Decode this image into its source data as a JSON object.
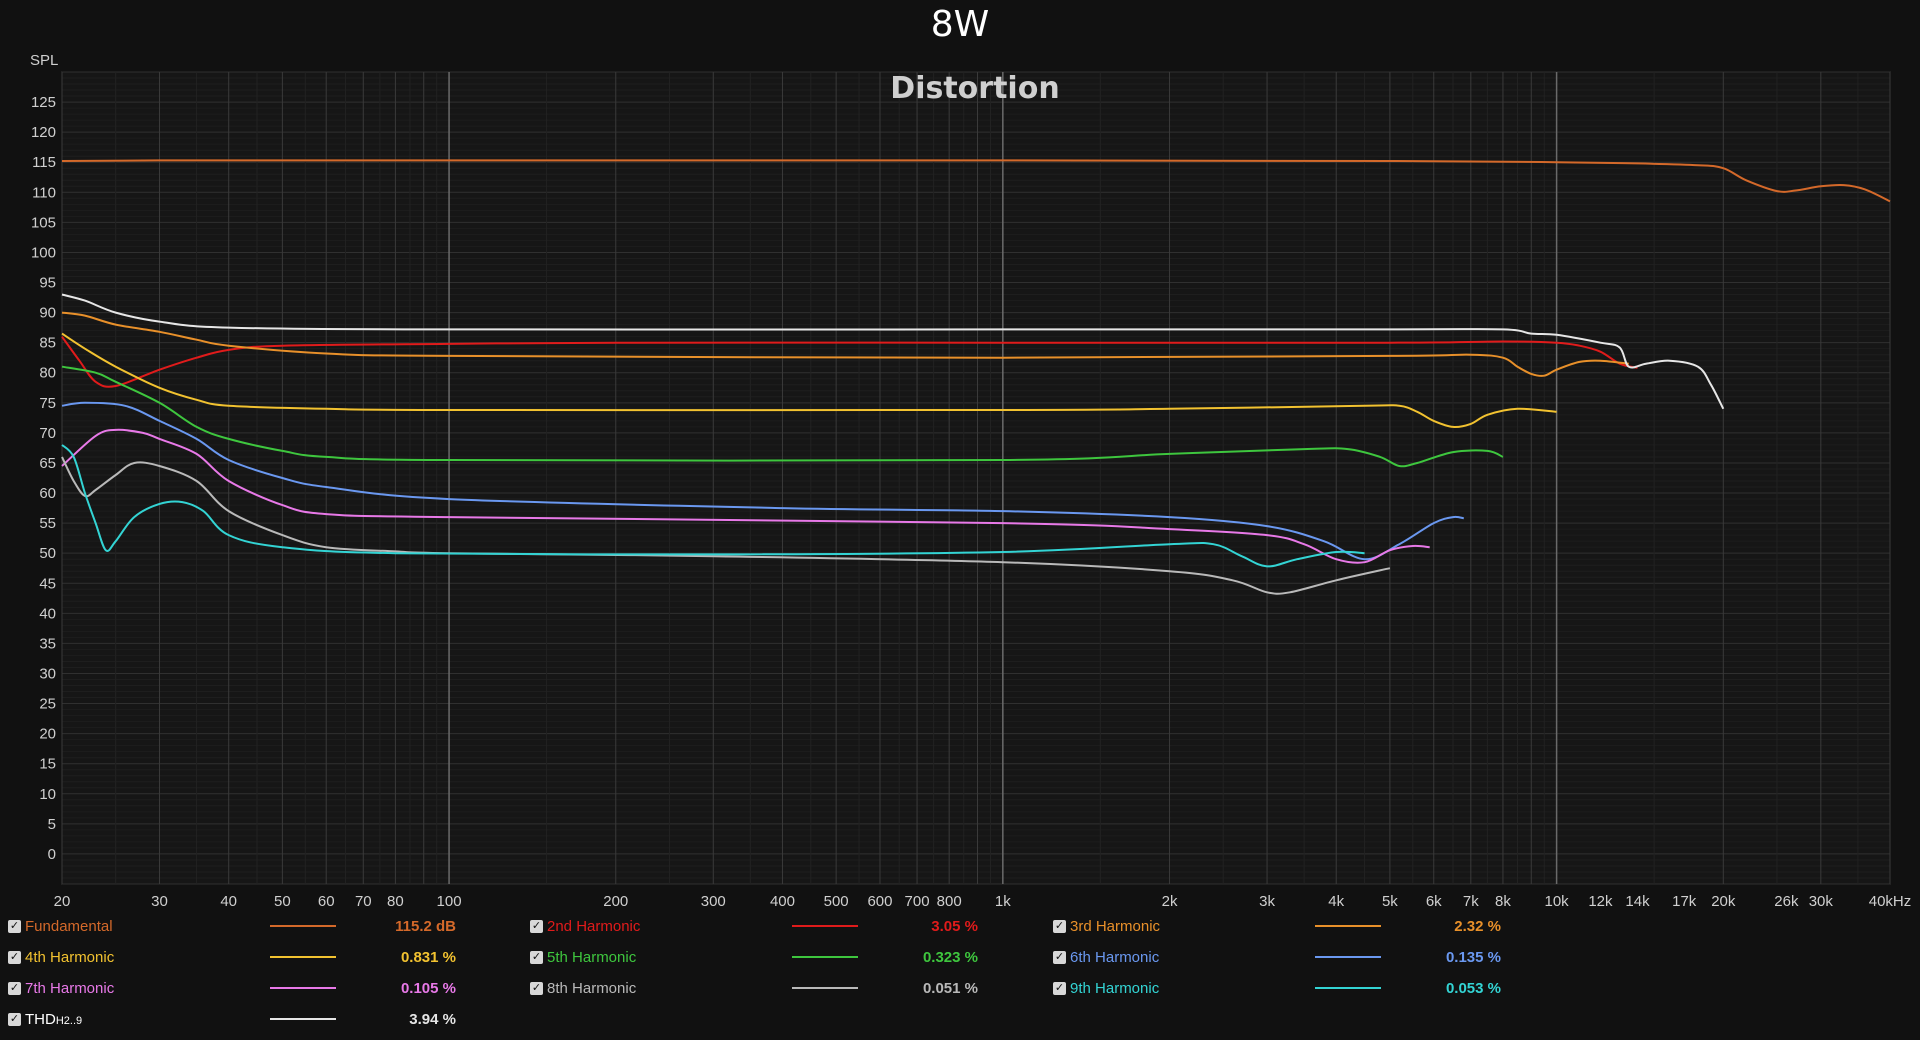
{
  "page": {
    "title": "8W"
  },
  "chart_data": {
    "type": "line",
    "title": "Distortion",
    "ylabel": "SPL",
    "xlabel": "",
    "x_scale": "log",
    "xlim": [
      20,
      40000
    ],
    "ylim": [
      -5,
      130
    ],
    "grid": true,
    "yticks": [
      0,
      5,
      10,
      15,
      20,
      25,
      30,
      35,
      40,
      45,
      50,
      55,
      60,
      65,
      70,
      75,
      80,
      85,
      90,
      95,
      100,
      105,
      110,
      115,
      120,
      125
    ],
    "xticks": [
      {
        "v": 20,
        "label": "20"
      },
      {
        "v": 30,
        "label": "30"
      },
      {
        "v": 40,
        "label": "40"
      },
      {
        "v": 50,
        "label": "50"
      },
      {
        "v": 60,
        "label": "60"
      },
      {
        "v": 70,
        "label": "70"
      },
      {
        "v": 80,
        "label": "80"
      },
      {
        "v": 100,
        "label": "100"
      },
      {
        "v": 200,
        "label": "200"
      },
      {
        "v": 300,
        "label": "300"
      },
      {
        "v": 400,
        "label": "400"
      },
      {
        "v": 500,
        "label": "500"
      },
      {
        "v": 600,
        "label": "600"
      },
      {
        "v": 700,
        "label": "700"
      },
      {
        "v": 800,
        "label": "800"
      },
      {
        "v": 1000,
        "label": "1k"
      },
      {
        "v": 2000,
        "label": "2k"
      },
      {
        "v": 3000,
        "label": "3k"
      },
      {
        "v": 4000,
        "label": "4k"
      },
      {
        "v": 5000,
        "label": "5k"
      },
      {
        "v": 6000,
        "label": "6k"
      },
      {
        "v": 7000,
        "label": "7k"
      },
      {
        "v": 8000,
        "label": "8k"
      },
      {
        "v": 10000,
        "label": "10k"
      },
      {
        "v": 12000,
        "label": "12k"
      },
      {
        "v": 14000,
        "label": "14k"
      },
      {
        "v": 17000,
        "label": "17k"
      },
      {
        "v": 20000,
        "label": "20k"
      },
      {
        "v": 26000,
        "label": "26k"
      },
      {
        "v": 30000,
        "label": "30k"
      },
      {
        "v": 40000,
        "label": "40kHz"
      }
    ],
    "series": [
      {
        "name": "Fundamental",
        "color": "#d4692a",
        "value": "115.2 dB",
        "points": [
          [
            20,
            115.2
          ],
          [
            30,
            115.3
          ],
          [
            100,
            115.3
          ],
          [
            1000,
            115.3
          ],
          [
            5000,
            115.2
          ],
          [
            10000,
            115
          ],
          [
            14000,
            114.8
          ],
          [
            18000,
            114.5
          ],
          [
            20000,
            114
          ],
          [
            22000,
            112
          ],
          [
            25000,
            110.2
          ],
          [
            27000,
            110.3
          ],
          [
            30000,
            111
          ],
          [
            33000,
            111.2
          ],
          [
            36000,
            110.5
          ],
          [
            40000,
            108.5
          ]
        ]
      },
      {
        "name": "2nd Harmonic",
        "color": "#e01b1b",
        "value": "3.05 %",
        "points": [
          [
            20,
            86
          ],
          [
            21.5,
            82
          ],
          [
            23,
            78.5
          ],
          [
            25,
            77.8
          ],
          [
            30,
            80.5
          ],
          [
            35,
            82.5
          ],
          [
            40,
            83.8
          ],
          [
            50,
            84.5
          ],
          [
            100,
            84.8
          ],
          [
            200,
            85
          ],
          [
            1000,
            85
          ],
          [
            5000,
            85
          ],
          [
            8000,
            85.2
          ],
          [
            10000,
            85
          ],
          [
            11000,
            84.5
          ],
          [
            12000,
            83.5
          ],
          [
            13000,
            81.5
          ],
          [
            14000,
            80.8
          ]
        ]
      },
      {
        "name": "3rd Harmonic",
        "color": "#e8902a",
        "value": "2.32 %",
        "points": [
          [
            20,
            90
          ],
          [
            22,
            89.5
          ],
          [
            25,
            88
          ],
          [
            30,
            86.8
          ],
          [
            35,
            85.5
          ],
          [
            40,
            84.5
          ],
          [
            60,
            83.2
          ],
          [
            100,
            82.8
          ],
          [
            1000,
            82.5
          ],
          [
            5000,
            82.8
          ],
          [
            7000,
            83
          ],
          [
            8000,
            82.5
          ],
          [
            8500,
            81
          ],
          [
            9000,
            79.8
          ],
          [
            9500,
            79.5
          ],
          [
            10000,
            80.5
          ],
          [
            11000,
            81.8
          ],
          [
            12000,
            82
          ],
          [
            13500,
            81.5
          ]
        ]
      },
      {
        "name": "4th Harmonic",
        "color": "#f2c230",
        "value": "0.831 %",
        "points": [
          [
            20,
            86.5
          ],
          [
            22,
            84
          ],
          [
            25,
            81
          ],
          [
            30,
            77.5
          ],
          [
            35,
            75.5
          ],
          [
            40,
            74.5
          ],
          [
            60,
            74
          ],
          [
            100,
            73.8
          ],
          [
            1000,
            73.8
          ],
          [
            2000,
            74
          ],
          [
            4500,
            74.5
          ],
          [
            5200,
            74.5
          ],
          [
            5600,
            73.5
          ],
          [
            6000,
            72
          ],
          [
            6500,
            71
          ],
          [
            7000,
            71.5
          ],
          [
            7500,
            73
          ],
          [
            8500,
            74
          ],
          [
            10000,
            73.5
          ]
        ]
      },
      {
        "name": "5th Harmonic",
        "color": "#3ec63e",
        "value": "0.323 %",
        "points": [
          [
            20,
            81
          ],
          [
            23,
            80
          ],
          [
            25,
            78.5
          ],
          [
            30,
            75
          ],
          [
            35,
            71
          ],
          [
            40,
            69
          ],
          [
            50,
            67
          ],
          [
            60,
            66
          ],
          [
            100,
            65.5
          ],
          [
            1000,
            65.5
          ],
          [
            2000,
            66.5
          ],
          [
            3500,
            67.3
          ],
          [
            4200,
            67.3
          ],
          [
            4800,
            66
          ],
          [
            5200,
            64.5
          ],
          [
            5600,
            65
          ],
          [
            6500,
            66.8
          ],
          [
            7500,
            67
          ],
          [
            8000,
            66
          ]
        ]
      },
      {
        "name": "6th Harmonic",
        "color": "#6a98f0",
        "value": "0.135 %",
        "points": [
          [
            20,
            74.5
          ],
          [
            22,
            75
          ],
          [
            26,
            74.5
          ],
          [
            30,
            72
          ],
          [
            35,
            69
          ],
          [
            40,
            65.5
          ],
          [
            50,
            62.5
          ],
          [
            60,
            61
          ],
          [
            100,
            59
          ],
          [
            400,
            57.5
          ],
          [
            1000,
            57
          ],
          [
            2000,
            56
          ],
          [
            3000,
            54.5
          ],
          [
            3800,
            52
          ],
          [
            4500,
            49
          ],
          [
            5200,
            51.5
          ],
          [
            6000,
            55
          ],
          [
            6500,
            56
          ],
          [
            6800,
            55.8
          ]
        ]
      },
      {
        "name": "7th Harmonic",
        "color": "#e879e8",
        "value": "0.105 %",
        "points": [
          [
            20,
            64.5
          ],
          [
            23,
            69.5
          ],
          [
            25,
            70.5
          ],
          [
            28,
            70
          ],
          [
            30,
            69
          ],
          [
            35,
            66.5
          ],
          [
            40,
            62
          ],
          [
            50,
            58
          ],
          [
            60,
            56.5
          ],
          [
            100,
            56
          ],
          [
            1000,
            55
          ],
          [
            2000,
            54
          ],
          [
            3000,
            53
          ],
          [
            3500,
            51.5
          ],
          [
            4000,
            49
          ],
          [
            4500,
            48.5
          ],
          [
            5000,
            50.5
          ],
          [
            5500,
            51.2
          ],
          [
            5900,
            51
          ]
        ]
      },
      {
        "name": "8th Harmonic",
        "color": "#b9b9b9",
        "value": "0.051 %",
        "points": [
          [
            20,
            66
          ],
          [
            21,
            62
          ],
          [
            22,
            59.5
          ],
          [
            23,
            60.5
          ],
          [
            25,
            63
          ],
          [
            27,
            65
          ],
          [
            30,
            64.5
          ],
          [
            35,
            62
          ],
          [
            40,
            57
          ],
          [
            50,
            53
          ],
          [
            60,
            51
          ],
          [
            80,
            50.3
          ],
          [
            100,
            50
          ],
          [
            300,
            49.5
          ],
          [
            1000,
            48.5
          ],
          [
            2000,
            47
          ],
          [
            2600,
            45.5
          ],
          [
            3000,
            43.5
          ],
          [
            3300,
            43.5
          ],
          [
            4000,
            45.5
          ],
          [
            5000,
            47.5
          ]
        ]
      },
      {
        "name": "9th Harmonic",
        "color": "#33d4d4",
        "value": "0.053 %",
        "points": [
          [
            20,
            68
          ],
          [
            21,
            66
          ],
          [
            22,
            60
          ],
          [
            23,
            55
          ],
          [
            24,
            50.5
          ],
          [
            25,
            52
          ],
          [
            27,
            56
          ],
          [
            30,
            58.2
          ],
          [
            33,
            58.5
          ],
          [
            36,
            57
          ],
          [
            40,
            53
          ],
          [
            50,
            51
          ],
          [
            80,
            50
          ],
          [
            300,
            49.8
          ],
          [
            1000,
            50.2
          ],
          [
            2000,
            51.5
          ],
          [
            2400,
            51.5
          ],
          [
            2700,
            49.5
          ],
          [
            3000,
            47.8
          ],
          [
            3400,
            49
          ],
          [
            4000,
            50.2
          ],
          [
            4500,
            50
          ]
        ]
      },
      {
        "name": "THD",
        "color": "#e6e6e6",
        "value": "3.94 %",
        "subscript": "H2..9",
        "points": [
          [
            20,
            93
          ],
          [
            22,
            92
          ],
          [
            25,
            90
          ],
          [
            30,
            88.5
          ],
          [
            40,
            87.5
          ],
          [
            100,
            87.2
          ],
          [
            1000,
            87.2
          ],
          [
            5000,
            87.2
          ],
          [
            8000,
            87.2
          ],
          [
            9000,
            86.5
          ],
          [
            10000,
            86.3
          ],
          [
            12000,
            85
          ],
          [
            13000,
            84.2
          ],
          [
            13500,
            81
          ],
          [
            14500,
            81.5
          ],
          [
            16000,
            82
          ],
          [
            18000,
            81
          ],
          [
            19000,
            78
          ],
          [
            20000,
            74
          ]
        ]
      }
    ]
  }
}
